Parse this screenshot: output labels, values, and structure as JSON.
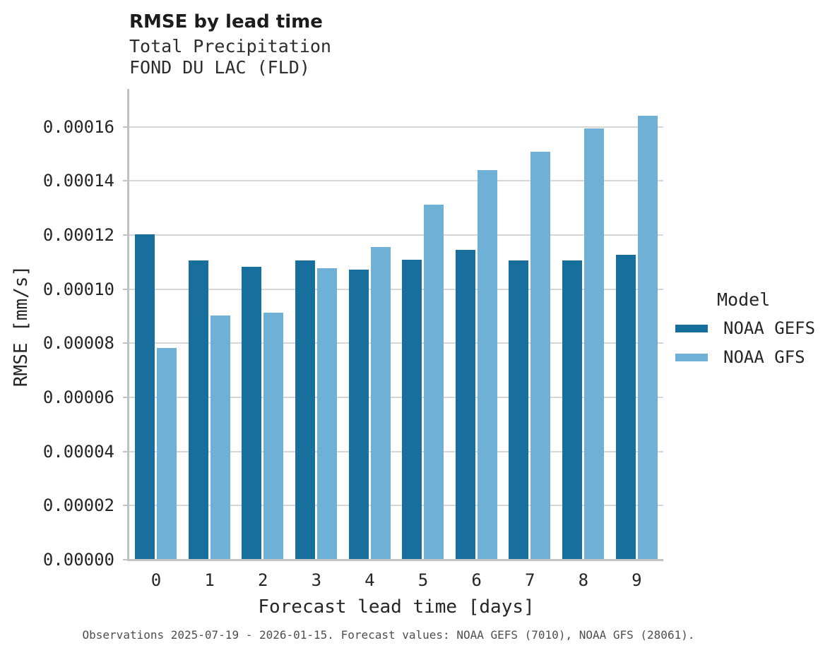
{
  "header": {
    "title": "RMSE by lead time",
    "subtitle1": "Total Precipitation",
    "subtitle2": "FOND DU LAC (FLD)"
  },
  "footer_text": "Observations 2025-07-19 - 2026-01-15. Forecast values: NOAA GEFS (7010), NOAA GFS (28061).",
  "legend": {
    "title": "Model",
    "entries": [
      {
        "label": "NOAA GEFS",
        "color": "#186e9c"
      },
      {
        "label": "NOAA GFS",
        "color": "#6fb0d7"
      }
    ]
  },
  "colors": {
    "gefs_dark_blue": "#186e9c",
    "gfs_light_blue": "#6fb0d7",
    "gridline": "#d6d6d6",
    "spine": "#c2c2c2"
  },
  "chart_data": {
    "type": "bar",
    "title": "RMSE by lead time",
    "subtitle": [
      "Total Precipitation",
      "FOND DU LAC (FLD)"
    ],
    "xlabel": "Forecast lead time [days]",
    "ylabel": "RMSE [mm/s]",
    "categories": [
      "0",
      "1",
      "2",
      "3",
      "4",
      "5",
      "6",
      "7",
      "8",
      "9"
    ],
    "series": [
      {
        "name": "NOAA GEFS",
        "color": "#186e9c",
        "values": [
          0.0001204,
          0.0001106,
          0.0001084,
          0.0001107,
          0.0001072,
          0.0001108,
          0.0001145,
          0.0001105,
          0.0001107,
          0.0001127
        ]
      },
      {
        "name": "NOAA GFS",
        "color": "#6fb0d7",
        "values": [
          7.84e-05,
          9.04e-05,
          9.14e-05,
          0.0001077,
          0.0001156,
          0.0001311,
          0.000144,
          0.0001509,
          0.0001593,
          0.0001641
        ]
      }
    ],
    "ylim": [
      0,
      0.00017375
    ],
    "yticks": [
      0.0,
      2e-05,
      4e-05,
      6e-05,
      8e-05,
      0.0001,
      0.00012,
      0.00014,
      0.00016
    ],
    "ytick_labels": [
      "0.00000",
      "0.00002",
      "0.00004",
      "0.00006",
      "0.00008",
      "0.00010",
      "0.00012",
      "0.00014",
      "0.00016"
    ],
    "grid": "horizontal",
    "legend_position": "right",
    "legend_title": "Model"
  }
}
